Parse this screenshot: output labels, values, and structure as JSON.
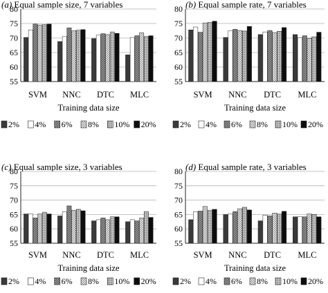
{
  "chart_data": [
    {
      "type": "bar",
      "title": "(a) Equal sample size, 7 variables",
      "xlabel": "Training data size",
      "ylabel": "",
      "ylim": [
        55,
        80
      ],
      "yticks": [
        55,
        60,
        65,
        70,
        75,
        80
      ],
      "grid": true,
      "legend_position": "bottom",
      "categories": [
        "SVM",
        "NNC",
        "DTC",
        "MLC"
      ],
      "series": [
        {
          "name": "2%",
          "values": [
            70.2,
            68.8,
            69.8,
            64.2
          ]
        },
        {
          "name": "4%",
          "values": [
            72.8,
            70.5,
            71.0,
            70.2
          ]
        },
        {
          "name": "6%",
          "values": [
            74.8,
            73.5,
            71.5,
            70.8
          ]
        },
        {
          "name": "8%",
          "values": [
            74.5,
            72.5,
            71.2,
            71.8
          ]
        },
        {
          "name": "10%",
          "values": [
            74.6,
            72.7,
            72.1,
            70.5
          ]
        },
        {
          "name": "20%",
          "values": [
            74.8,
            72.9,
            71.6,
            70.8
          ]
        }
      ]
    },
    {
      "type": "bar",
      "title": "(b) Equal sample rate, 7 variables",
      "xlabel": "Training data size",
      "ylabel": "",
      "ylim": [
        55,
        80
      ],
      "yticks": [
        55,
        60,
        65,
        70,
        75,
        80
      ],
      "grid": true,
      "legend_position": "bottom",
      "categories": [
        "SVM",
        "NNC",
        "DTC",
        "MLC"
      ],
      "series": [
        {
          "name": "2%",
          "values": [
            72.8,
            70.2,
            71.2,
            71.2
          ]
        },
        {
          "name": "4%",
          "values": [
            73.8,
            72.5,
            72.1,
            70.2
          ]
        },
        {
          "name": "6%",
          "values": [
            72.0,
            73.0,
            72.6,
            70.8
          ]
        },
        {
          "name": "8%",
          "values": [
            75.2,
            72.6,
            71.9,
            69.9
          ]
        },
        {
          "name": "10%",
          "values": [
            75.4,
            72.4,
            72.3,
            70.4
          ]
        },
        {
          "name": "20%",
          "values": [
            75.8,
            74.0,
            73.6,
            72.0
          ]
        }
      ]
    },
    {
      "type": "bar",
      "title": "(c) Equal sample size, 3 variables",
      "xlabel": "Training data size",
      "ylabel": "",
      "ylim": [
        55,
        80
      ],
      "yticks": [
        55,
        60,
        65,
        70,
        75,
        80
      ],
      "grid": true,
      "legend_position": "bottom",
      "categories": [
        "SVM",
        "NNC",
        "DTC",
        "MLC"
      ],
      "series": [
        {
          "name": "2%",
          "values": [
            65.2,
            64.5,
            62.8,
            62.5
          ]
        },
        {
          "name": "4%",
          "values": [
            65.2,
            66.0,
            63.2,
            63.2
          ]
        },
        {
          "name": "6%",
          "values": [
            63.8,
            68.0,
            63.8,
            62.8
          ]
        },
        {
          "name": "8%",
          "values": [
            65.2,
            66.5,
            63.2,
            63.8
          ]
        },
        {
          "name": "10%",
          "values": [
            65.8,
            66.8,
            64.2,
            66.0
          ]
        },
        {
          "name": "20%",
          "values": [
            65.2,
            66.3,
            64.2,
            64.0
          ]
        }
      ]
    },
    {
      "type": "bar",
      "title": "(d) Equal sample rate, 3 variables",
      "xlabel": "Training data size",
      "ylabel": "",
      "ylim": [
        55,
        80
      ],
      "yticks": [
        55,
        60,
        65,
        70,
        75,
        80
      ],
      "grid": true,
      "legend_position": "bottom",
      "categories": [
        "SVM",
        "NNC",
        "DTC",
        "MLC"
      ],
      "series": [
        {
          "name": "2%",
          "values": [
            63.2,
            65.0,
            62.8,
            64.2
          ]
        },
        {
          "name": "4%",
          "values": [
            66.0,
            65.2,
            64.8,
            64.2
          ]
        },
        {
          "name": "6%",
          "values": [
            66.2,
            66.0,
            64.5,
            64.2
          ]
        },
        {
          "name": "8%",
          "values": [
            67.8,
            67.0,
            65.5,
            65.2
          ]
        },
        {
          "name": "10%",
          "values": [
            66.5,
            67.5,
            65.2,
            65.0
          ]
        },
        {
          "name": "20%",
          "values": [
            66.8,
            66.6,
            66.1,
            64.2
          ]
        }
      ]
    }
  ],
  "series_colors": [
    "#3a3a3a",
    "#ffffff",
    "#8a8a8a",
    "#f2f2f2",
    "#b5b5b5",
    "#0d0d0d"
  ],
  "series_patterns": [
    "solid",
    "solid",
    "hatch",
    "checker",
    "dots",
    "solid"
  ]
}
